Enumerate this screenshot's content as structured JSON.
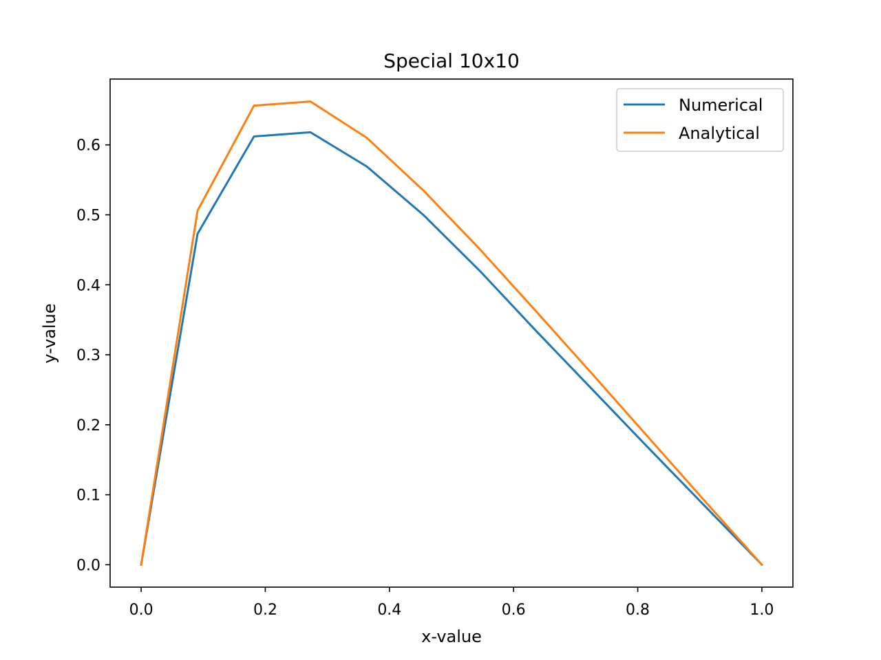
{
  "chart_data": {
    "type": "line",
    "title": "Special 10x10",
    "xlabel": "x-value",
    "ylabel": "y-value",
    "xlim": [
      -0.05,
      1.05
    ],
    "ylim": [
      -0.032,
      0.694
    ],
    "xticks": [
      0.0,
      0.2,
      0.4,
      0.6,
      0.8,
      1.0
    ],
    "xtick_labels": [
      "0.0",
      "0.2",
      "0.4",
      "0.6",
      "0.8",
      "1.0"
    ],
    "yticks": [
      0.0,
      0.1,
      0.2,
      0.3,
      0.4,
      0.5,
      0.6
    ],
    "ytick_labels": [
      "0.0",
      "0.1",
      "0.2",
      "0.3",
      "0.4",
      "0.5",
      "0.6"
    ],
    "grid": false,
    "legend_position": "top-right",
    "x": [
      0.0,
      0.0909,
      0.1818,
      0.2727,
      0.3636,
      0.4545,
      0.5455,
      0.6364,
      0.7273,
      0.8182,
      0.9091,
      1.0
    ],
    "series": [
      {
        "name": "Numerical",
        "color": "#1f77b4",
        "values": [
          0.0,
          0.473,
          0.612,
          0.618,
          0.569,
          0.5,
          0.42,
          0.334,
          0.25,
          0.166,
          0.083,
          0.0
        ]
      },
      {
        "name": "Analytical",
        "color": "#ff7f0e",
        "values": [
          0.0,
          0.506,
          0.656,
          0.662,
          0.61,
          0.535,
          0.451,
          0.362,
          0.272,
          0.181,
          0.09,
          0.0
        ]
      }
    ]
  }
}
